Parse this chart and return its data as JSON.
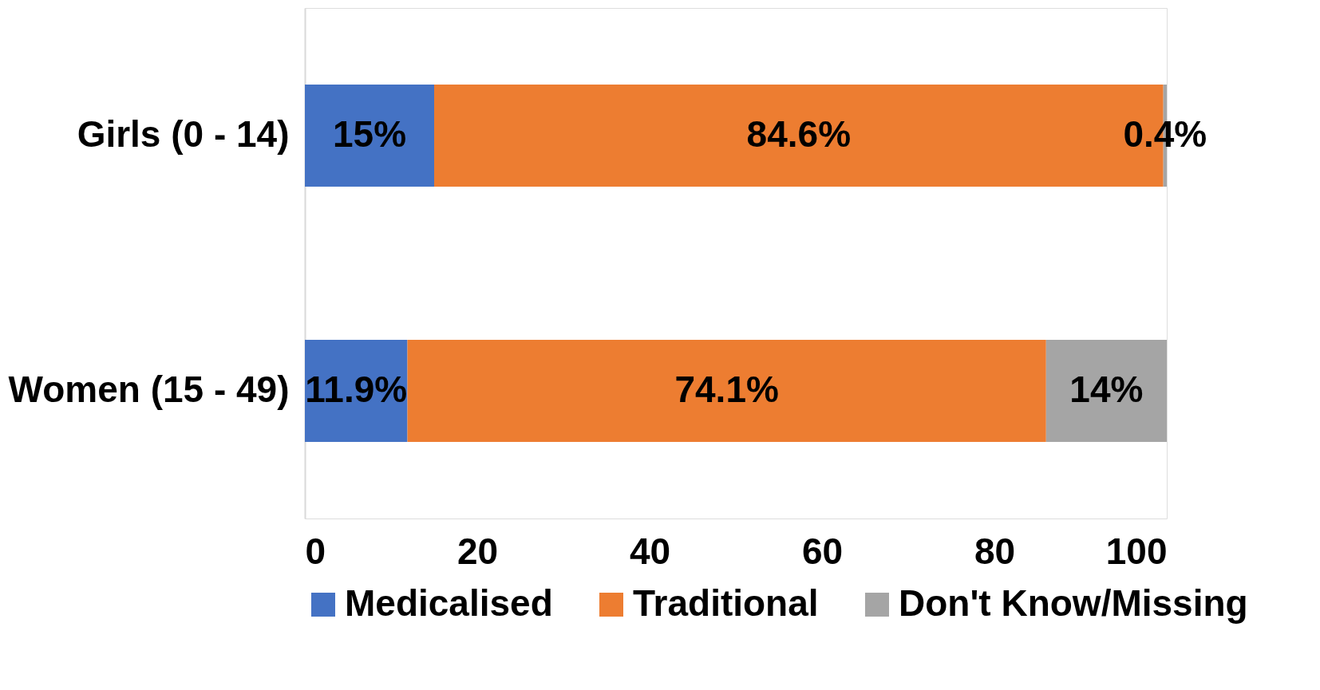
{
  "chart_data": {
    "type": "bar",
    "orientation": "horizontal",
    "stacked": true,
    "categories": [
      "Girls (0 - 14)",
      "Women (15 - 49)"
    ],
    "series": [
      {
        "name": "Medicalised",
        "color": "#4472c4",
        "values": [
          15,
          11.9
        ],
        "value_labels": [
          "15%",
          "11.9%"
        ]
      },
      {
        "name": "Traditional",
        "color": "#ed7d31",
        "values": [
          84.6,
          74.1
        ],
        "value_labels": [
          "84.6%",
          "74.1%"
        ]
      },
      {
        "name": "Don't Know/Missing",
        "color": "#a5a5a5",
        "values": [
          0.4,
          14
        ],
        "value_labels": [
          "0.4%",
          "14%"
        ]
      }
    ],
    "xlim": [
      0,
      100
    ],
    "xticks": [
      0,
      20,
      40,
      60,
      80,
      100
    ],
    "grid": false,
    "legend": "bottom"
  }
}
